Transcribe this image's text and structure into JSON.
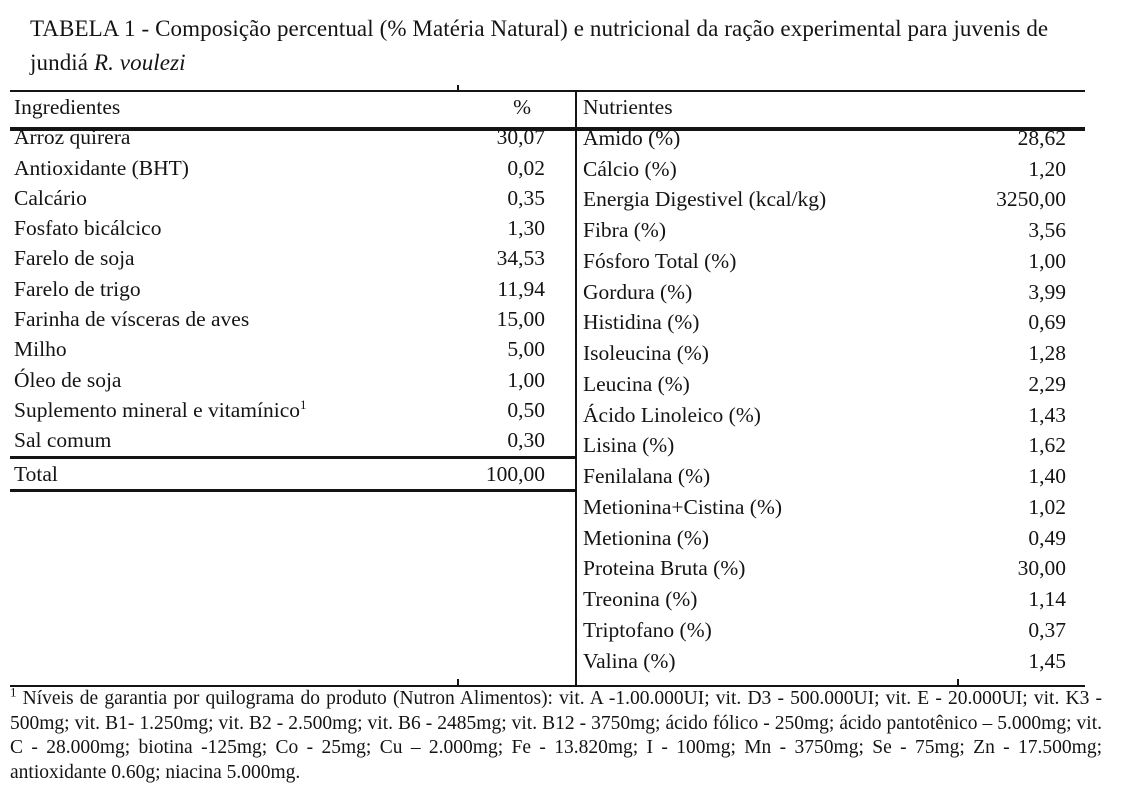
{
  "title": {
    "text": "TABELA 1 - Composição percentual (% Matéria Natural) e nutricional da ração experimental para juvenis de jundiá ",
    "species": "R. voulezi"
  },
  "table": {
    "left": {
      "header_name": "Ingredientes",
      "header_value": "%",
      "rows": [
        {
          "name": "Arroz quirera",
          "value": "30,07"
        },
        {
          "name": "Antioxidante (BHT)",
          "value": "0,02"
        },
        {
          "name": "Calcário",
          "value": "0,35"
        },
        {
          "name": "Fosfato bicálcico",
          "value": "1,30"
        },
        {
          "name": "Farelo de soja",
          "value": "34,53"
        },
        {
          "name": "Farelo de trigo",
          "value": "11,94"
        },
        {
          "name": "Farinha de vísceras de aves",
          "value": "15,00"
        },
        {
          "name": "Milho",
          "value": "5,00"
        },
        {
          "name": "Óleo de soja",
          "value": "1,00"
        },
        {
          "name": "Suplemento mineral e vitamínico",
          "sup": "1",
          "value": "0,50"
        },
        {
          "name": "Sal comum",
          "value": "0,30"
        }
      ],
      "total": {
        "name": "Total",
        "value": "100,00"
      }
    },
    "right": {
      "header_name": "Nutrientes",
      "rows": [
        {
          "name": "Amido (%)",
          "value": "28,62"
        },
        {
          "name": "Cálcio (%)",
          "value": "1,20"
        },
        {
          "name": "Energia Digestivel (kcal/kg)",
          "value": "3250,00"
        },
        {
          "name": "Fibra (%)",
          "value": "3,56"
        },
        {
          "name": "Fósforo Total (%)",
          "value": "1,00"
        },
        {
          "name": "Gordura (%)",
          "value": "3,99"
        },
        {
          "name": "Histidina (%)",
          "value": "0,69"
        },
        {
          "name": "Isoleucina (%)",
          "value": "1,28"
        },
        {
          "name": "Leucina (%)",
          "value": "2,29"
        },
        {
          "name": "Ácido Linoleico (%)",
          "value": "1,43"
        },
        {
          "name": "Lisina (%)",
          "value": "1,62"
        },
        {
          "name": "Fenilalana (%)",
          "value": "1,40"
        },
        {
          "name": "Metionina+Cistina (%)",
          "value": "1,02"
        },
        {
          "name": "Metionina (%)",
          "value": "0,49"
        },
        {
          "name": "Proteina Bruta (%)",
          "value": "30,00"
        },
        {
          "name": "Treonina (%)",
          "value": "1,14"
        },
        {
          "name": "Triptofano (%)",
          "value": "0,37"
        },
        {
          "name": "Valina (%)",
          "value": "1,45"
        }
      ]
    }
  },
  "footnote": {
    "marker": "1",
    "text": " Níveis de garantia por quilograma do produto (Nutron Alimentos): vit. A -1.00.000UI; vit. D3 - 500.000UI; vit. E - 20.000UI; vit. K3 - 500mg; vit. B1- 1.250mg; vit. B2 - 2.500mg; vit. B6 - 2485mg; vit. B12 - 3750mg; ácido fólico - 250mg; ácido pantotênico – 5.000mg; vit. C - 28.000mg; biotina -125mg; Co - 25mg; Cu – 2.000mg; Fe - 13.820mg; I - 100mg; Mn - 3750mg; Se - 75mg; Zn - 17.500mg; antioxidante 0.60g; niacina 5.000mg."
  }
}
